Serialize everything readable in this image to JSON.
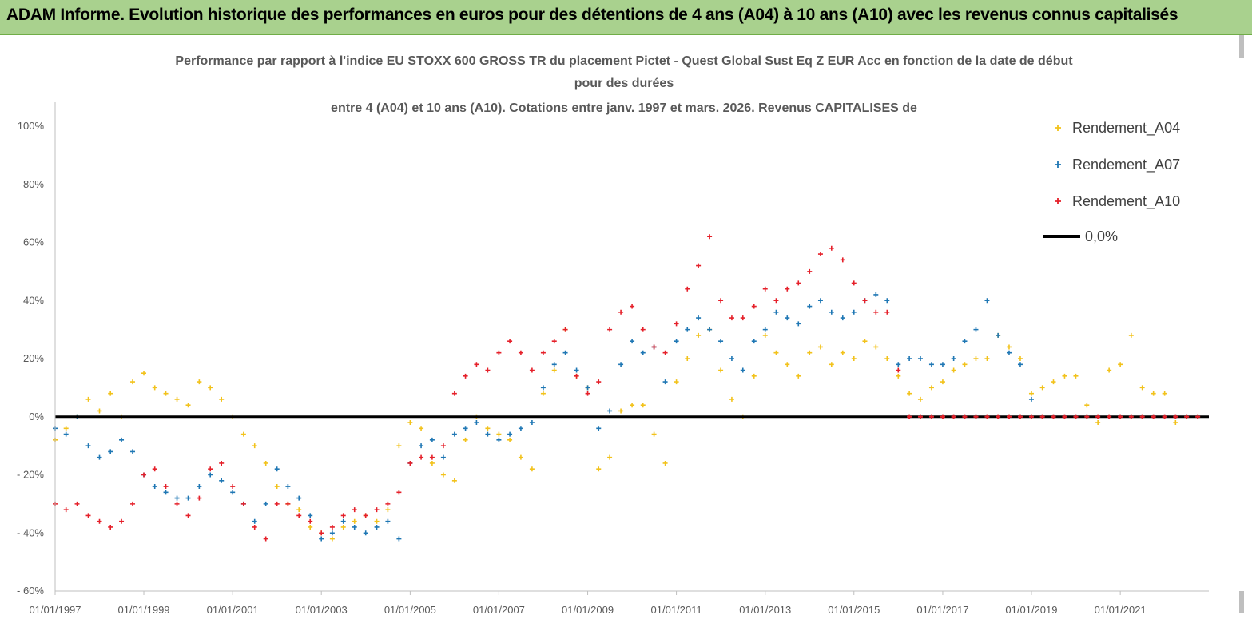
{
  "banner": {
    "title": "ADAM Informe. Evolution historique des performances en euros pour des détentions de 4 ans (A04) à 10 ans (A10) avec les revenus connus capitalisés"
  },
  "chart_data": {
    "type": "scatter",
    "title_lines": [
      "Performance par rapport à l'indice EU STOXX 600 GROSS TR  du placement Pictet - Quest Global Sust Eq Z EUR Acc en fonction de la date de début",
      "pour des durées",
      "entre 4 (A04) et 10 ans (A10). Cotations entre janv. 1997 et mars. 2026. Revenus CAPITALISES de"
    ],
    "xlim": [
      "1997-01-01",
      "2022-12-31"
    ],
    "ylim": [
      -60,
      100
    ],
    "y_ticks": [
      -60,
      -40,
      -20,
      0,
      20,
      40,
      60,
      80,
      100
    ],
    "y_tick_labels": [
      "- 60%",
      "- 40%",
      "- 20%",
      "0%",
      "20%",
      "40%",
      "60%",
      "80%",
      "100%"
    ],
    "x_ticks": [
      "1997-01-01",
      "1999-01-01",
      "2001-01-01",
      "2003-01-01",
      "2005-01-01",
      "2007-01-01",
      "2009-01-01",
      "2011-01-01",
      "2013-01-01",
      "2015-01-01",
      "2017-01-01",
      "2019-01-01",
      "2021-01-01"
    ],
    "x_tick_labels": [
      "01/01/1997",
      "01/01/1999",
      "01/01/2001",
      "01/01/2003",
      "01/01/2005",
      "01/01/2007",
      "01/01/2009",
      "01/01/2011",
      "01/01/2013",
      "01/01/2015",
      "01/01/2017",
      "01/01/2019",
      "01/01/2021"
    ],
    "legend_position": "top-right",
    "grid": false,
    "series": [
      {
        "name": "Rendement_A04",
        "color": "#f2c21b",
        "marker": "plus",
        "x": [
          "1997-01-01",
          "1997-04-01",
          "1997-07-01",
          "1997-10-01",
          "1998-01-01",
          "1998-04-01",
          "1998-07-01",
          "1998-10-01",
          "1999-01-01",
          "1999-04-01",
          "1999-07-01",
          "1999-10-01",
          "2000-01-01",
          "2000-04-01",
          "2000-07-01",
          "2000-10-01",
          "2001-01-01",
          "2001-04-01",
          "2001-07-01",
          "2001-10-01",
          "2002-01-01",
          "2002-04-01",
          "2002-07-01",
          "2002-10-01",
          "2003-01-01",
          "2003-04-01",
          "2003-07-01",
          "2003-10-01",
          "2004-01-01",
          "2004-04-01",
          "2004-07-01",
          "2004-10-01",
          "2005-01-01",
          "2005-04-01",
          "2005-07-01",
          "2005-10-01",
          "2006-01-01",
          "2006-04-01",
          "2006-07-01",
          "2006-10-01",
          "2007-01-01",
          "2007-04-01",
          "2007-07-01",
          "2007-10-01",
          "2008-01-01",
          "2008-04-01",
          "2008-07-01",
          "2008-10-01",
          "2009-01-01",
          "2009-04-01",
          "2009-07-01",
          "2009-10-01",
          "2010-01-01",
          "2010-04-01",
          "2010-07-01",
          "2010-10-01",
          "2011-01-01",
          "2011-04-01",
          "2011-07-01",
          "2011-10-01",
          "2012-01-01",
          "2012-04-01",
          "2012-07-01",
          "2012-10-01",
          "2013-01-01",
          "2013-04-01",
          "2013-07-01",
          "2013-10-01",
          "2014-01-01",
          "2014-04-01",
          "2014-07-01",
          "2014-10-01",
          "2015-01-01",
          "2015-04-01",
          "2015-07-01",
          "2015-10-01",
          "2016-01-01",
          "2016-04-01",
          "2016-07-01",
          "2016-10-01",
          "2017-01-01",
          "2017-04-01",
          "2017-07-01",
          "2017-10-01",
          "2018-01-01",
          "2018-04-01",
          "2018-07-01",
          "2018-10-01",
          "2019-01-01",
          "2019-04-01",
          "2019-07-01",
          "2019-10-01",
          "2020-01-01",
          "2020-04-01",
          "2020-07-01",
          "2020-10-01",
          "2021-01-01",
          "2021-04-01",
          "2021-07-01",
          "2021-10-01",
          "2022-01-01",
          "2022-04-01"
        ],
        "y": [
          -8,
          -4,
          0,
          6,
          2,
          8,
          0,
          12,
          15,
          10,
          8,
          6,
          4,
          12,
          10,
          6,
          0,
          -6,
          -10,
          -16,
          -24,
          -30,
          -32,
          -38,
          -40,
          -42,
          -38,
          -36,
          -34,
          -36,
          -32,
          -10,
          -2,
          -4,
          -16,
          -20,
          -22,
          -8,
          0,
          -4,
          -6,
          -8,
          -14,
          -18,
          8,
          16,
          30,
          14,
          10,
          -18,
          -14,
          2,
          4,
          4,
          -6,
          -16,
          12,
          20,
          28,
          30,
          16,
          6,
          0,
          14,
          28,
          22,
          18,
          14,
          22,
          24,
          18,
          22,
          20,
          26,
          24,
          20,
          14,
          8,
          6,
          10,
          12,
          16,
          18,
          20,
          20,
          28,
          24,
          20,
          8,
          10,
          12,
          14,
          14,
          4,
          -2,
          16,
          18,
          28,
          10,
          8,
          8,
          -2
        ]
      },
      {
        "name": "Rendement_A07",
        "color": "#1f77b4",
        "marker": "plus",
        "x": [
          "1997-01-01",
          "1997-04-01",
          "1997-07-01",
          "1997-10-01",
          "1998-01-01",
          "1998-04-01",
          "1998-07-01",
          "1998-10-01",
          "1999-01-01",
          "1999-04-01",
          "1999-07-01",
          "1999-10-01",
          "2000-01-01",
          "2000-04-01",
          "2000-07-01",
          "2000-10-01",
          "2001-01-01",
          "2001-04-01",
          "2001-07-01",
          "2001-10-01",
          "2002-01-01",
          "2002-04-01",
          "2002-07-01",
          "2002-10-01",
          "2003-01-01",
          "2003-04-01",
          "2003-07-01",
          "2003-10-01",
          "2004-01-01",
          "2004-04-01",
          "2004-07-01",
          "2004-10-01",
          "2005-01-01",
          "2005-04-01",
          "2005-07-01",
          "2005-10-01",
          "2006-01-01",
          "2006-04-01",
          "2006-07-01",
          "2006-10-01",
          "2007-01-01",
          "2007-04-01",
          "2007-07-01",
          "2007-10-01",
          "2008-01-01",
          "2008-04-01",
          "2008-07-01",
          "2008-10-01",
          "2009-01-01",
          "2009-04-01",
          "2009-07-01",
          "2009-10-01",
          "2010-01-01",
          "2010-04-01",
          "2010-07-01",
          "2010-10-01",
          "2011-01-01",
          "2011-04-01",
          "2011-07-01",
          "2011-10-01",
          "2012-01-01",
          "2012-04-01",
          "2012-07-01",
          "2012-10-01",
          "2013-01-01",
          "2013-04-01",
          "2013-07-01",
          "2013-10-01",
          "2014-01-01",
          "2014-04-01",
          "2014-07-01",
          "2014-10-01",
          "2015-01-01",
          "2015-04-01",
          "2015-07-01",
          "2015-10-01",
          "2016-01-01",
          "2016-04-01",
          "2016-07-01",
          "2016-10-01",
          "2017-01-01",
          "2017-04-01",
          "2017-07-01",
          "2017-10-01",
          "2018-01-01",
          "2018-04-01",
          "2018-07-01",
          "2018-10-01",
          "2019-01-01"
        ],
        "y": [
          -4,
          -6,
          0,
          -10,
          -14,
          -12,
          -8,
          -12,
          -20,
          -24,
          -26,
          -28,
          -28,
          -24,
          -20,
          -22,
          -26,
          -30,
          -36,
          -30,
          -18,
          -24,
          -28,
          -34,
          -42,
          -40,
          -36,
          -38,
          -40,
          -38,
          -36,
          -42,
          -16,
          -10,
          -8,
          -14,
          -6,
          -4,
          -2,
          -6,
          -8,
          -6,
          -4,
          -2,
          10,
          18,
          22,
          16,
          10,
          -4,
          2,
          18,
          26,
          22,
          24,
          12,
          26,
          30,
          34,
          30,
          26,
          20,
          16,
          26,
          30,
          36,
          34,
          32,
          38,
          40,
          36,
          34,
          36,
          40,
          42,
          40,
          18,
          20,
          20,
          18,
          18,
          20,
          26,
          30,
          40,
          28,
          22,
          18,
          6
        ]
      },
      {
        "name": "Rendement_A10",
        "color": "#e5202a",
        "marker": "plus",
        "x": [
          "1997-01-01",
          "1997-04-01",
          "1997-07-01",
          "1997-10-01",
          "1998-01-01",
          "1998-04-01",
          "1998-07-01",
          "1998-10-01",
          "1999-01-01",
          "1999-04-01",
          "1999-07-01",
          "1999-10-01",
          "2000-01-01",
          "2000-04-01",
          "2000-07-01",
          "2000-10-01",
          "2001-01-01",
          "2001-04-01",
          "2001-07-01",
          "2001-10-01",
          "2002-01-01",
          "2002-04-01",
          "2002-07-01",
          "2002-10-01",
          "2003-01-01",
          "2003-04-01",
          "2003-07-01",
          "2003-10-01",
          "2004-01-01",
          "2004-04-01",
          "2004-07-01",
          "2004-10-01",
          "2005-01-01",
          "2005-04-01",
          "2005-07-01",
          "2005-10-01",
          "2006-01-01",
          "2006-04-01",
          "2006-07-01",
          "2006-10-01",
          "2007-01-01",
          "2007-04-01",
          "2007-07-01",
          "2007-10-01",
          "2008-01-01",
          "2008-04-01",
          "2008-07-01",
          "2008-10-01",
          "2009-01-01",
          "2009-04-01",
          "2009-07-01",
          "2009-10-01",
          "2010-01-01",
          "2010-04-01",
          "2010-07-01",
          "2010-10-01",
          "2011-01-01",
          "2011-04-01",
          "2011-07-01",
          "2011-10-01",
          "2012-01-01",
          "2012-04-01",
          "2012-07-01",
          "2012-10-01",
          "2013-01-01",
          "2013-04-01",
          "2013-07-01",
          "2013-10-01",
          "2014-01-01",
          "2014-04-01",
          "2014-07-01",
          "2014-10-01",
          "2015-01-01",
          "2015-04-01",
          "2015-07-01",
          "2015-10-01",
          "2016-01-01",
          "2016-04-01",
          "2016-07-01",
          "2016-10-01",
          "2017-01-01",
          "2017-04-01",
          "2017-07-01",
          "2017-10-01",
          "2018-01-01",
          "2018-04-01",
          "2018-07-01",
          "2018-10-01",
          "2019-01-01",
          "2019-04-01",
          "2019-07-01",
          "2019-10-01",
          "2020-01-01",
          "2020-04-01",
          "2020-07-01",
          "2020-10-01",
          "2021-01-01",
          "2021-04-01",
          "2021-07-01",
          "2021-10-01",
          "2022-01-01",
          "2022-04-01",
          "2022-07-01",
          "2022-10-01"
        ],
        "y": [
          -30,
          -32,
          -30,
          -34,
          -36,
          -38,
          -36,
          -30,
          -20,
          -18,
          -24,
          -30,
          -34,
          -28,
          -18,
          -16,
          -24,
          -30,
          -38,
          -42,
          -30,
          -30,
          -34,
          -36,
          -40,
          -38,
          -34,
          -32,
          -34,
          -32,
          -30,
          -26,
          -16,
          -14,
          -14,
          -10,
          8,
          14,
          18,
          16,
          22,
          26,
          22,
          16,
          22,
          26,
          30,
          14,
          8,
          12,
          30,
          36,
          38,
          30,
          24,
          22,
          32,
          44,
          52,
          62,
          40,
          34,
          34,
          38,
          44,
          40,
          44,
          46,
          50,
          56,
          58,
          54,
          46,
          40,
          36,
          36,
          16,
          0,
          0,
          0,
          0,
          0,
          0,
          0,
          0,
          0,
          0,
          0,
          0,
          0,
          0,
          0,
          0,
          0,
          0,
          0,
          0,
          0,
          0,
          0,
          0,
          0,
          0,
          0
        ]
      }
    ],
    "reference_line": {
      "name": "0,0%",
      "value": 0,
      "color": "#000000"
    }
  }
}
